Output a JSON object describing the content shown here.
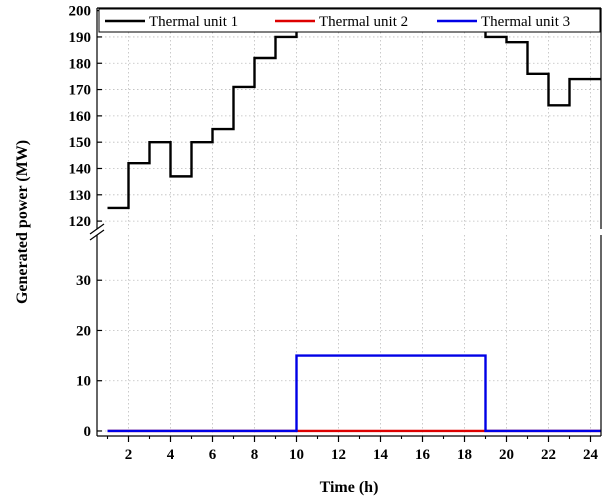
{
  "chart_data": {
    "type": "line",
    "step": true,
    "xlabel": "Time (h)",
    "ylabel": "Generated power (MW)",
    "x_ticks": [
      2,
      4,
      6,
      8,
      10,
      12,
      14,
      16,
      18,
      20,
      22,
      24
    ],
    "xlim": [
      0.5,
      24.5
    ],
    "y_axis_break": {
      "upper_range": [
        117,
        201
      ],
      "upper_ticks": [
        120,
        130,
        140,
        150,
        160,
        170,
        180,
        190,
        200
      ],
      "lower_range": [
        -1,
        39
      ],
      "lower_ticks": [
        0,
        10,
        20,
        30
      ]
    },
    "grid": true,
    "legend": "top",
    "x": [
      1,
      2,
      3,
      4,
      5,
      6,
      7,
      8,
      9,
      10,
      11,
      12,
      13,
      14,
      15,
      16,
      17,
      18,
      19,
      20,
      21,
      22,
      23,
      24
    ],
    "series": [
      {
        "name": "Thermal unit 1",
        "color": "#000000",
        "values": [
          125,
          142,
          150,
          137,
          150,
          155,
          171,
          182,
          190,
          195,
          195,
          195,
          195,
          195,
          195,
          195,
          195,
          195,
          190,
          188,
          176,
          164,
          174,
          174
        ]
      },
      {
        "name": "Thermal unit 2",
        "color": "#dd0000",
        "values": [
          0,
          0,
          0,
          0,
          0,
          0,
          0,
          0,
          0,
          0,
          0,
          0,
          0,
          0,
          0,
          0,
          0,
          0,
          0,
          0,
          0,
          0,
          0,
          0
        ]
      },
      {
        "name": "Thermal unit 3",
        "color": "#0000e6",
        "values": [
          0,
          0,
          0,
          0,
          0,
          0,
          0,
          0,
          0,
          15,
          15,
          15,
          15,
          15,
          15,
          15,
          15,
          15,
          0,
          0,
          0,
          0,
          0,
          0
        ]
      }
    ]
  }
}
